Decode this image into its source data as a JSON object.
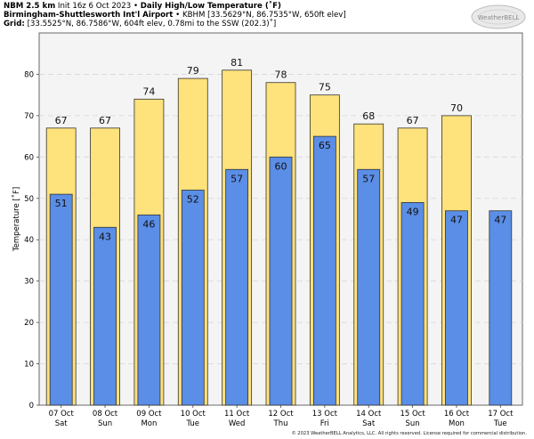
{
  "header": {
    "model": "NBM 2.5 km",
    "init": "Init 16z 6 Oct 2023",
    "sep": "•",
    "product": "Daily High/Low Temperature (˚F)",
    "station_name": "Birmingham-Shuttlesworth Int'l Airport",
    "station_info": "KBHM [33.5629°N, 86.7535°W, 650ft elev]",
    "grid_label": "Grid:",
    "grid_info": "[33.5525°N, 86.7586°W, 604ft elev, 0.78mi to the SSW (202.3)˚]"
  },
  "logo": {
    "text": "WeatherBELL"
  },
  "copyright": "© 2023 WeatherBELL Analytics, LLC. All rights reserved. License required for commercial distribution.",
  "colors": {
    "high": "#fee27b",
    "low": "#5b8ee6",
    "plot_bg": "#f4f4f4",
    "grid": "#d6d6d6"
  },
  "chart_data": {
    "type": "bar",
    "ylabel": "Temperature [˚F]",
    "ylim": [
      0,
      90
    ],
    "yticks": [
      0,
      10,
      20,
      30,
      40,
      50,
      60,
      70,
      80
    ],
    "grid": true,
    "categories": [
      {
        "date": "07 Oct",
        "day": "Sat"
      },
      {
        "date": "08 Oct",
        "day": "Sun"
      },
      {
        "date": "09 Oct",
        "day": "Mon"
      },
      {
        "date": "10 Oct",
        "day": "Tue"
      },
      {
        "date": "11 Oct",
        "day": "Wed"
      },
      {
        "date": "12 Oct",
        "day": "Thu"
      },
      {
        "date": "13 Oct",
        "day": "Fri"
      },
      {
        "date": "14 Oct",
        "day": "Sat"
      },
      {
        "date": "15 Oct",
        "day": "Sun"
      },
      {
        "date": "16 Oct",
        "day": "Mon"
      },
      {
        "date": "17 Oct",
        "day": "Tue"
      }
    ],
    "series": [
      {
        "key": "high",
        "values": [
          67,
          67,
          74,
          79,
          81,
          78,
          75,
          68,
          67,
          70,
          null
        ]
      },
      {
        "key": "low",
        "values": [
          51,
          43,
          46,
          52,
          57,
          60,
          65,
          57,
          49,
          47,
          47
        ]
      }
    ]
  }
}
